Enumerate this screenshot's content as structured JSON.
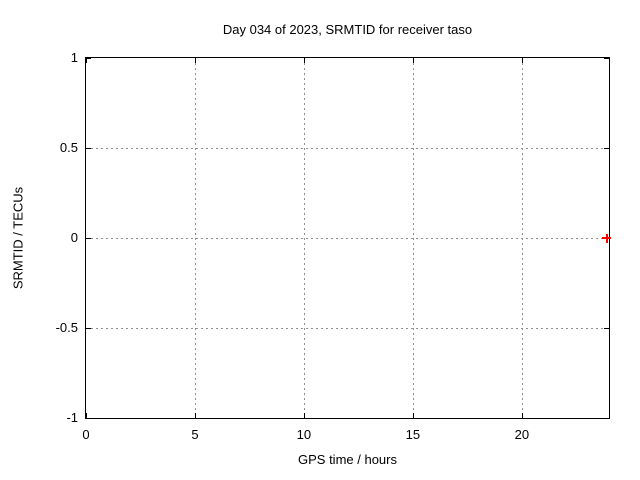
{
  "chart_data": {
    "type": "scatter",
    "title": "Day 034 of 2023, SRMTID for receiver taso",
    "xlabel": "GPS time / hours",
    "ylabel": "SRMTID / TECUs",
    "xlim": [
      0,
      24
    ],
    "ylim": [
      -1,
      1
    ],
    "xticks": [
      0,
      5,
      10,
      15,
      20
    ],
    "xtick_labels": [
      "0",
      "5",
      "10",
      "15",
      "20"
    ],
    "yticks": [
      1,
      0.5,
      0,
      -0.5,
      -1
    ],
    "ytick_labels": [
      "1",
      "0.5",
      "0",
      "-0.5",
      "-1"
    ],
    "x_gridlines": [
      5,
      10,
      15,
      20
    ],
    "y_gridlines": [
      0.5,
      0,
      -0.5
    ],
    "grid": true,
    "grid_style": "dotted",
    "legend": "none",
    "series": [
      {
        "name": "SRMTID",
        "marker": "plus",
        "color": "#ff0000",
        "points": [
          {
            "x": 23.9,
            "y": 0
          }
        ]
      }
    ],
    "colors": {
      "background": "#ffffff",
      "axis": "#000000",
      "grid": "#909090",
      "text": "#000000",
      "marker": "#ff0000"
    }
  }
}
